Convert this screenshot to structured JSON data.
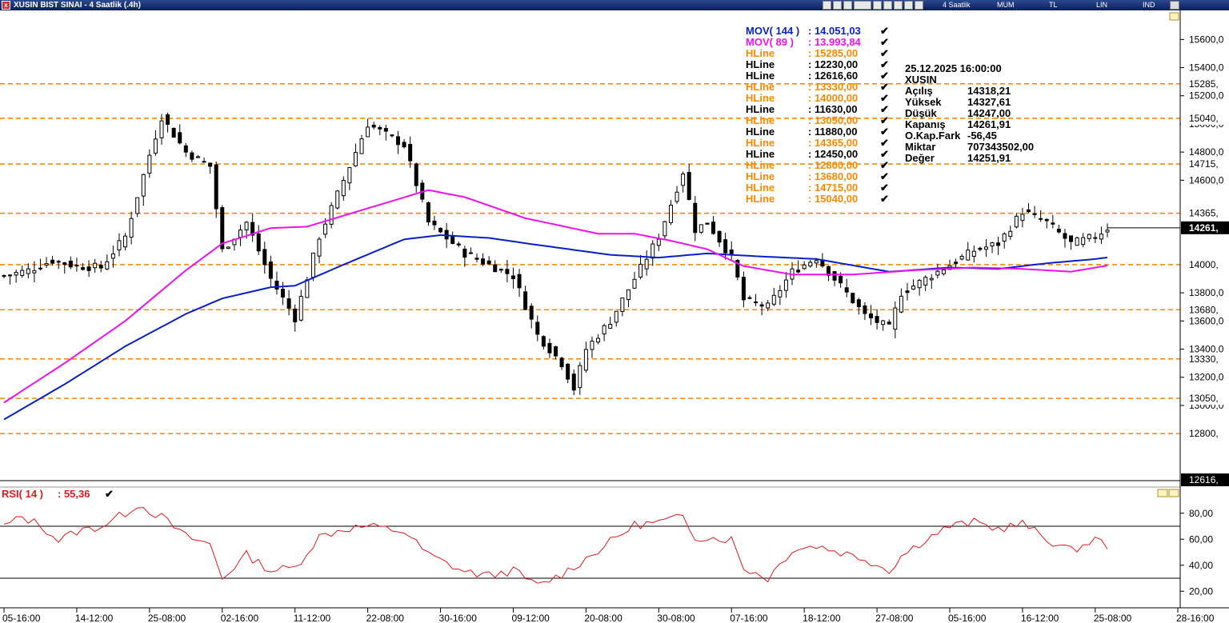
{
  "window": {
    "title": "XUSIN BIST SINAI - 4 Saatlik (.4h)",
    "period": "4 Saatlik",
    "modes": [
      "MUM",
      "TL",
      "LIN",
      "IND"
    ],
    "close_glyph": "x"
  },
  "colors": {
    "up_candle": "#ffffff",
    "down_candle": "#000000",
    "mov144": "#0a1fcc",
    "mov89": "#ee11ee",
    "hline_orange": "#ff8800",
    "hline_black": "#000000",
    "rsi": "#e8171e"
  },
  "legend": {
    "mov144": {
      "label": "MOV( 144 )",
      "value": ": 14.051,03"
    },
    "mov89": {
      "label": "MOV( 89 )",
      "value": ": 13.993,84"
    },
    "hlines": [
      {
        "label": "HLine",
        "value": ": 15285,00",
        "color": "orange"
      },
      {
        "label": "HLine",
        "value": ": 12230,00",
        "color": "black"
      },
      {
        "label": "HLine",
        "value": ": 12616,60",
        "color": "black"
      },
      {
        "label": "HLine",
        "value": ": 13330,00",
        "color": "orange"
      },
      {
        "label": "HLine",
        "value": ": 14000,00",
        "color": "orange"
      },
      {
        "label": "HLine",
        "value": ": 11630,00",
        "color": "black"
      },
      {
        "label": "HLine",
        "value": ": 13050,00",
        "color": "orange"
      },
      {
        "label": "HLine",
        "value": ": 11880,00",
        "color": "black"
      },
      {
        "label": "HLine",
        "value": ": 14365,00",
        "color": "orange"
      },
      {
        "label": "HLine",
        "value": ": 12450,00",
        "color": "black"
      },
      {
        "label": "HLine",
        "value": ": 12800,00",
        "color": "orange"
      },
      {
        "label": "HLine",
        "value": ": 13680,00",
        "color": "orange"
      },
      {
        "label": "HLine",
        "value": ": 14715,00",
        "color": "orange"
      },
      {
        "label": "HLine",
        "value": ": 15040,00",
        "color": "orange"
      }
    ],
    "check_glyph": "✔"
  },
  "info_box": {
    "datetime": "25.12.2025  16:00:00",
    "symbol": "XUSIN",
    "rows": [
      {
        "label": "Açılış",
        "value": "14318,21"
      },
      {
        "label": "Yüksek",
        "value": "14327,61"
      },
      {
        "label": "Düşük",
        "value": "14247,00"
      },
      {
        "label": "Kapanış",
        "value": "14261,91"
      },
      {
        "label": "O.Kap.Fark",
        "value": "-56,45"
      },
      {
        "label": "Miktar",
        "value": "707343502,00"
      },
      {
        "label": "Değer",
        "value": "14251,91"
      }
    ]
  },
  "rsi_label": {
    "label": "RSI( 14 )",
    "value": ": 55,36"
  },
  "chart_data": [
    {
      "type": "candlestick",
      "symbol": "XUSIN",
      "ylim": [
        12616,
        15700
      ],
      "y_ticks": [
        "15600,0",
        "15400,0",
        "15200,0",
        "15000,0",
        "14800,0",
        "14600,0",
        "13800,0",
        "13600,0",
        "13400,0",
        "13200,0",
        "13000,0"
      ],
      "hline_levels": [
        15285,
        15040,
        14715,
        14365,
        14000,
        13680,
        13330,
        13050,
        12800
      ],
      "hline_tags": [
        "15285,",
        "15040,",
        "14715,",
        "14365,",
        "14000,",
        "13680,",
        "13330,",
        "13050,",
        "12800,"
      ],
      "current_price": 14261.91,
      "current_price_tag": "14261,",
      "bottom_tag": "12616,",
      "x_ticks": [
        "05-16:00",
        "14-12:00",
        "25-08:00",
        "02-16:00",
        "11-12:00",
        "22-08:00",
        "30-16:00",
        "09-12:00",
        "20-08:00",
        "30-08:00",
        "07-16:00",
        "18-12:00",
        "27-08:00",
        "05-16:00",
        "16-12:00",
        "25-08:00",
        "28-16:00"
      ],
      "x_tick_index": [
        0,
        12,
        24,
        36,
        48,
        60,
        72,
        84,
        96,
        108,
        120,
        132,
        144,
        156,
        168,
        180,
        192
      ],
      "close_path": [
        [
          0,
          13920
        ],
        [
          4,
          13960
        ],
        [
          8,
          14030
        ],
        [
          12,
          13990
        ],
        [
          16,
          13980
        ],
        [
          20,
          14200
        ],
        [
          24,
          14780
        ],
        [
          26,
          15050
        ],
        [
          30,
          14800
        ],
        [
          34,
          14700
        ],
        [
          36,
          14100
        ],
        [
          40,
          14300
        ],
        [
          44,
          13900
        ],
        [
          48,
          13620
        ],
        [
          52,
          14200
        ],
        [
          56,
          14600
        ],
        [
          60,
          15000
        ],
        [
          66,
          14850
        ],
        [
          70,
          14300
        ],
        [
          76,
          14080
        ],
        [
          80,
          14000
        ],
        [
          84,
          13920
        ],
        [
          88,
          13500
        ],
        [
          92,
          13300
        ],
        [
          94,
          13120
        ],
        [
          96,
          13400
        ],
        [
          100,
          13600
        ],
        [
          104,
          13900
        ],
        [
          108,
          14200
        ],
        [
          112,
          14660
        ],
        [
          114,
          14250
        ],
        [
          116,
          14300
        ],
        [
          120,
          14050
        ],
        [
          122,
          13750
        ],
        [
          126,
          13700
        ],
        [
          130,
          13950
        ],
        [
          134,
          14050
        ],
        [
          138,
          13850
        ],
        [
          142,
          13640
        ],
        [
          146,
          13550
        ],
        [
          148,
          13800
        ],
        [
          152,
          13900
        ],
        [
          156,
          14000
        ],
        [
          160,
          14100
        ],
        [
          164,
          14150
        ],
        [
          168,
          14380
        ],
        [
          172,
          14300
        ],
        [
          176,
          14150
        ],
        [
          180,
          14200
        ],
        [
          182,
          14261
        ]
      ],
      "mov144_path": [
        [
          0,
          12900
        ],
        [
          10,
          13150
        ],
        [
          20,
          13420
        ],
        [
          30,
          13650
        ],
        [
          36,
          13760
        ],
        [
          44,
          13840
        ],
        [
          48,
          13850
        ],
        [
          56,
          14000
        ],
        [
          66,
          14180
        ],
        [
          72,
          14210
        ],
        [
          80,
          14190
        ],
        [
          88,
          14140
        ],
        [
          100,
          14070
        ],
        [
          108,
          14050
        ],
        [
          116,
          14080
        ],
        [
          124,
          14060
        ],
        [
          134,
          14040
        ],
        [
          146,
          13950
        ],
        [
          156,
          13980
        ],
        [
          164,
          13970
        ],
        [
          172,
          14010
        ],
        [
          180,
          14040
        ],
        [
          182,
          14051
        ]
      ],
      "mov89_path": [
        [
          0,
          13020
        ],
        [
          10,
          13300
        ],
        [
          20,
          13600
        ],
        [
          30,
          13960
        ],
        [
          36,
          14150
        ],
        [
          44,
          14260
        ],
        [
          50,
          14270
        ],
        [
          60,
          14400
        ],
        [
          70,
          14530
        ],
        [
          76,
          14480
        ],
        [
          86,
          14330
        ],
        [
          98,
          14220
        ],
        [
          104,
          14220
        ],
        [
          110,
          14170
        ],
        [
          116,
          14110
        ],
        [
          122,
          13990
        ],
        [
          130,
          13930
        ],
        [
          140,
          13930
        ],
        [
          150,
          13960
        ],
        [
          160,
          13980
        ],
        [
          168,
          13970
        ],
        [
          176,
          13950
        ],
        [
          182,
          13994
        ]
      ]
    },
    {
      "type": "line",
      "name": "RSI( 14 )",
      "ylim": [
        10,
        95
      ],
      "y_ticks": [
        "80,00",
        "60,00",
        "40,00",
        "20,00"
      ],
      "hlines": [
        70,
        30
      ],
      "last_value": 55.36,
      "rsi_path": [
        [
          0,
          70
        ],
        [
          3,
          77
        ],
        [
          6,
          71
        ],
        [
          9,
          59
        ],
        [
          12,
          66
        ],
        [
          16,
          70
        ],
        [
          20,
          80
        ],
        [
          22,
          87
        ],
        [
          26,
          77
        ],
        [
          30,
          62
        ],
        [
          34,
          56
        ],
        [
          36,
          30
        ],
        [
          40,
          48
        ],
        [
          44,
          36
        ],
        [
          48,
          38
        ],
        [
          52,
          62
        ],
        [
          56,
          68
        ],
        [
          60,
          70
        ],
        [
          66,
          66
        ],
        [
          70,
          48
        ],
        [
          76,
          35
        ],
        [
          80,
          32
        ],
        [
          84,
          36
        ],
        [
          88,
          24
        ],
        [
          92,
          33
        ],
        [
          96,
          45
        ],
        [
          100,
          58
        ],
        [
          104,
          71
        ],
        [
          108,
          73
        ],
        [
          112,
          77
        ],
        [
          114,
          62
        ],
        [
          120,
          60
        ],
        [
          122,
          38
        ],
        [
          126,
          30
        ],
        [
          130,
          52
        ],
        [
          134,
          55
        ],
        [
          138,
          50
        ],
        [
          142,
          45
        ],
        [
          146,
          36
        ],
        [
          148,
          47
        ],
        [
          152,
          60
        ],
        [
          156,
          70
        ],
        [
          160,
          73
        ],
        [
          164,
          68
        ],
        [
          168,
          72
        ],
        [
          172,
          60
        ],
        [
          176,
          51
        ],
        [
          180,
          60
        ],
        [
          182,
          55
        ]
      ]
    }
  ]
}
